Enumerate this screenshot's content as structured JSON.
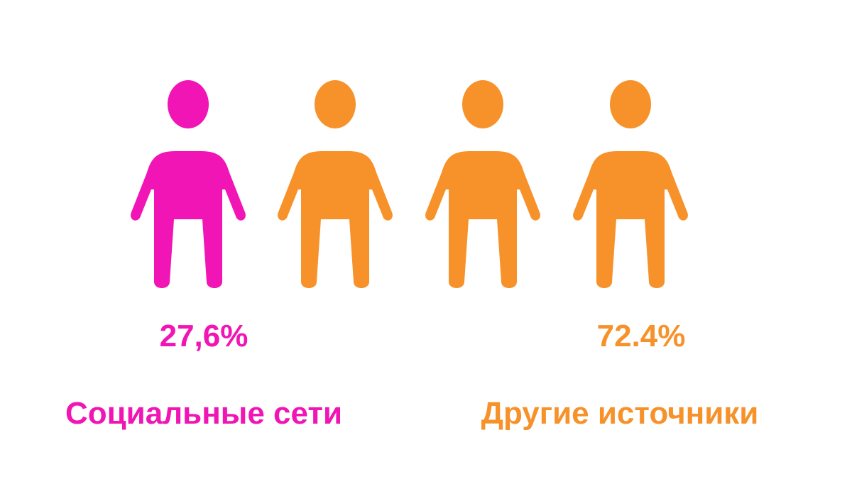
{
  "chart_data": {
    "type": "pictogram",
    "total_icons": 4,
    "series": [
      {
        "name": "Социальные сети",
        "value_label": "27,6%",
        "value": 27.6,
        "icons": 1,
        "color": "#f015b4"
      },
      {
        "name": "Другие источники",
        "value_label": "72.4%",
        "value": 72.4,
        "icons": 3,
        "color": "#f7922a"
      }
    ]
  },
  "colors": {
    "social": "#f015b4",
    "other": "#f7922a",
    "background": "#ffffff"
  }
}
